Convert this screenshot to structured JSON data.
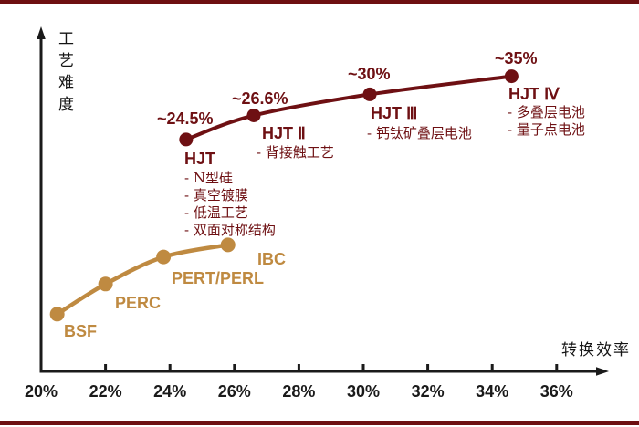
{
  "page": {
    "background": "#FFFFFF",
    "top_divider_color": "#6E0F11",
    "bottom_divider_color": "#6E0F11",
    "axis_color": "#1A1A1A"
  },
  "chart_data": {
    "type": "line",
    "xlabel": "转换效率",
    "ylabel": "工艺难度",
    "grid": false,
    "legend": "none",
    "x_axis": {
      "min": 20,
      "max": 36,
      "unit": "%",
      "tick_step": 2,
      "tick_labels": [
        "20%",
        "22%",
        "24%",
        "26%",
        "28%",
        "30%",
        "32%",
        "34%",
        "36%"
      ]
    },
    "y_axis": {
      "min": 0,
      "max": 100
    },
    "series": [
      {
        "id": "conventional",
        "color": "#BF8A41",
        "points": [
          {
            "label": "BSF",
            "x": 20.5,
            "y": 19
          },
          {
            "label": "PERC",
            "x": 22.0,
            "y": 29
          },
          {
            "label": "PERT/PERL",
            "x": 23.8,
            "y": 38
          },
          {
            "label": "IBC",
            "x": 25.8,
            "y": 42
          }
        ]
      },
      {
        "id": "hjt",
        "color": "#6E1013",
        "points": [
          {
            "label": "HJT",
            "efficiency": "~24.5%",
            "x": 24.5,
            "y": 77,
            "details": [
              "- N型硅",
              "- 真空镀膜",
              "- 低温工艺",
              "- 双面对称结构"
            ]
          },
          {
            "label": "HJT Ⅱ",
            "efficiency": "~26.6%",
            "x": 26.6,
            "y": 85,
            "details": [
              "- 背接触工艺"
            ]
          },
          {
            "label": "HJT Ⅲ",
            "efficiency": "~30%",
            "x": 30.2,
            "y": 92,
            "details": [
              "- 钙钛矿叠层电池"
            ]
          },
          {
            "label": "HJT Ⅳ",
            "efficiency": "~35%",
            "x": 34.6,
            "y": 98,
            "details": [
              "- 多叠层电池",
              "- 量子点电池"
            ]
          }
        ]
      }
    ]
  }
}
